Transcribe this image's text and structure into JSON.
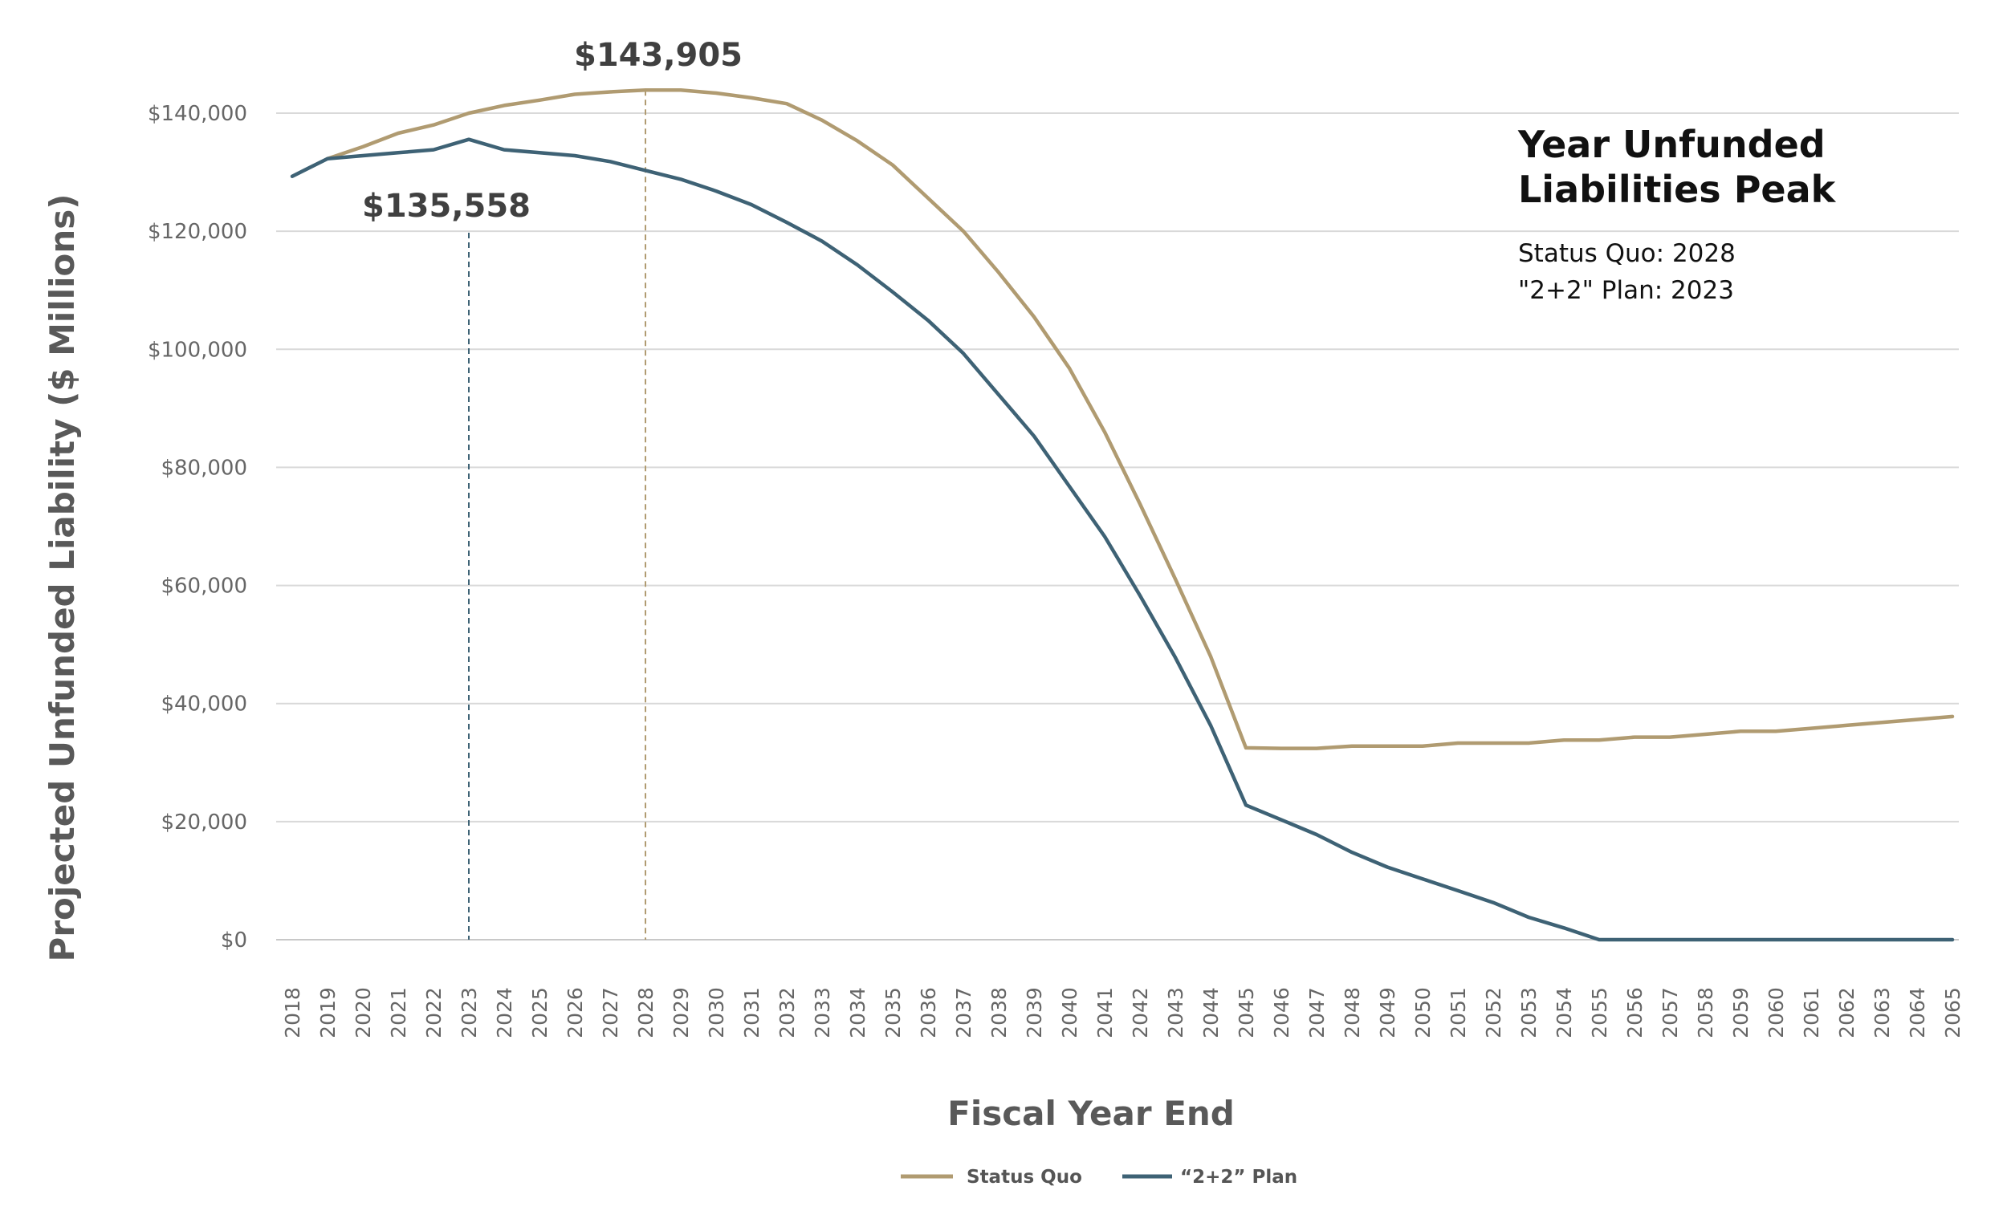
{
  "chart_data": {
    "type": "line",
    "title": "",
    "xlabel": "Fiscal Year End",
    "ylabel": "Projected Unfunded Liability ($ Millions)",
    "ylim": [
      0,
      140000
    ],
    "y_ticks": [
      0,
      20000,
      40000,
      60000,
      80000,
      100000,
      120000,
      140000
    ],
    "y_tick_labels": [
      "$0",
      "$20,000",
      "$40,000",
      "$60,000",
      "$80,000",
      "$100,000",
      "$120,000",
      "$140,000"
    ],
    "grid": true,
    "categories": [
      "2018",
      "2019",
      "2020",
      "2021",
      "2022",
      "2023",
      "2024",
      "2025",
      "2026",
      "2027",
      "2028",
      "2029",
      "2030",
      "2031",
      "2032",
      "2033",
      "2034",
      "2035",
      "2036",
      "2037",
      "2038",
      "2039",
      "2040",
      "2041",
      "2042",
      "2043",
      "2044",
      "2045",
      "2046",
      "2047",
      "2048",
      "2049",
      "2050",
      "2051",
      "2052",
      "2053",
      "2054",
      "2055",
      "2056",
      "2057",
      "2058",
      "2059",
      "2060",
      "2061",
      "2062",
      "2063",
      "2064",
      "2065"
    ],
    "series": [
      {
        "name": "Status Quo",
        "color": "#b09b71",
        "values": [
          null,
          132300,
          134300,
          136600,
          138000,
          140000,
          141300,
          142200,
          143200,
          143600,
          143905,
          143900,
          143400,
          142600,
          141600,
          138800,
          135300,
          131200,
          125600,
          120000,
          113000,
          105500,
          96800,
          86000,
          73800,
          61100,
          48000,
          32500,
          32400,
          32400,
          32800,
          32800,
          32800,
          33300,
          33300,
          33300,
          33800,
          33800,
          34300,
          34300,
          34800,
          35300,
          35300,
          35800,
          36300,
          36800,
          37300,
          37800
        ]
      },
      {
        "name": "“2+2” Plan",
        "color": "#3e6275",
        "values": [
          129300,
          132300,
          132800,
          133300,
          133800,
          135558,
          133800,
          133300,
          132800,
          131800,
          130300,
          128800,
          126800,
          124500,
          121500,
          118300,
          114300,
          109700,
          104900,
          99300,
          92300,
          85300,
          76800,
          68300,
          58300,
          47800,
          36300,
          22800,
          20300,
          17800,
          14800,
          12300,
          10300,
          8300,
          6300,
          3800,
          2000,
          0,
          0,
          0,
          0,
          0,
          0,
          0,
          0,
          0,
          0,
          0
        ]
      }
    ],
    "annotations": [
      {
        "series": "Status Quo",
        "year": "2028",
        "value": 143905,
        "label": "$143,905"
      },
      {
        "series": "“2+2” Plan",
        "year": "2023",
        "value": 135558,
        "label": "$135,558"
      }
    ],
    "legend": {
      "position": "bottom-center",
      "entries": [
        "Status Quo",
        "“2+2” Plan"
      ]
    },
    "info_box": {
      "title_line1": "Year Unfunded",
      "title_line2": "Liabilities Peak",
      "line1": "Status Quo: 2028",
      "line2": "\"2+2\" Plan: 2023"
    }
  }
}
